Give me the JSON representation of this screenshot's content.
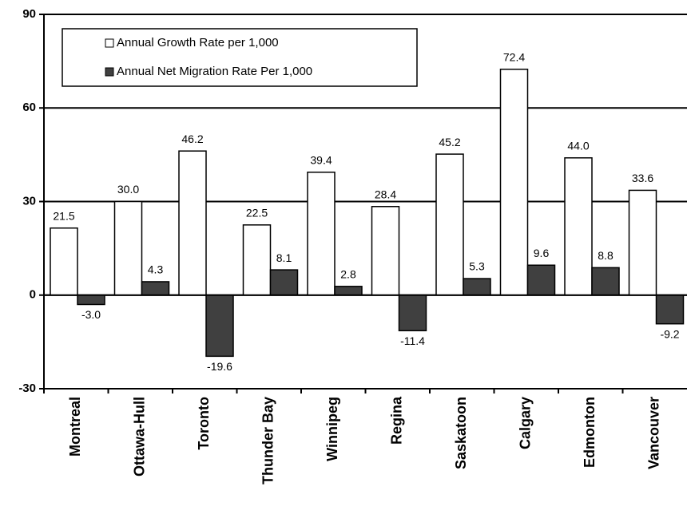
{
  "chart_data": {
    "type": "bar",
    "categories": [
      "Montreal",
      "Ottawa-Hull",
      "Toronto",
      "Thunder Bay",
      "Winnipeg",
      "Regina",
      "Saskatoon",
      "Calgary",
      "Edmonton",
      "Vancouver"
    ],
    "series": [
      {
        "name": "Annual Growth Rate per 1,000",
        "color": "#ffffff",
        "values": [
          21.5,
          30.0,
          46.2,
          22.5,
          39.4,
          28.4,
          45.2,
          72.4,
          44.0,
          33.6
        ],
        "value_labels": [
          "21.5",
          "30.0",
          "46.2",
          "22.5",
          "39.4",
          "28.4",
          "45.2",
          "72.4",
          "44.0",
          "33.6"
        ]
      },
      {
        "name": "Annual Net Migration Rate Per 1,000",
        "color": "#404040",
        "values": [
          -3.0,
          4.3,
          -19.6,
          8.1,
          2.8,
          -11.4,
          5.3,
          9.6,
          8.8,
          -9.2
        ],
        "value_labels": [
          "-3.0",
          "4.3",
          "-19.6",
          "8.1",
          "2.8",
          "-11.4",
          "5.3",
          "9.6",
          "8.8",
          "-9.2"
        ]
      }
    ],
    "ylim": [
      -30,
      90
    ],
    "yticks": [
      -30,
      0,
      30,
      60,
      90
    ],
    "grid": true,
    "legend": "top-left"
  }
}
